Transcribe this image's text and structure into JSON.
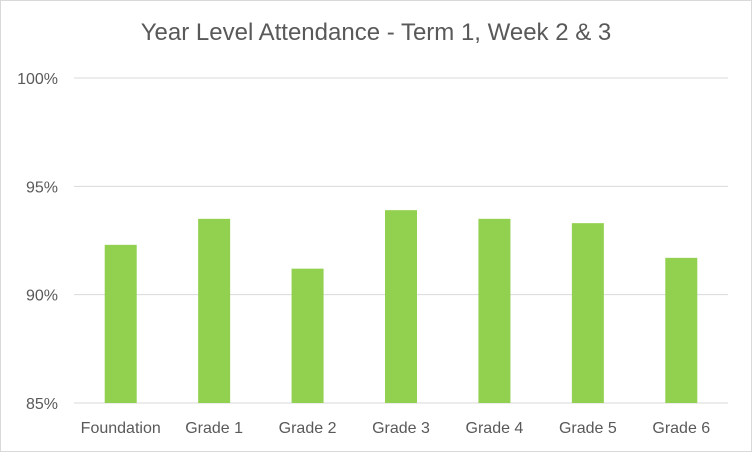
{
  "chart_data": {
    "type": "bar",
    "title": "Year Level Attendance - Term 1, Week 2 & 3",
    "categories": [
      "Foundation",
      "Grade 1",
      "Grade 2",
      "Grade 3",
      "Grade 4",
      "Grade 5",
      "Grade 6"
    ],
    "values": [
      92.3,
      93.5,
      91.2,
      93.9,
      93.5,
      93.3,
      91.7
    ],
    "ylim": [
      85,
      100
    ],
    "yticks": [
      85,
      90,
      95,
      100
    ],
    "ytick_labels": [
      "85%",
      "90%",
      "95%",
      "100%"
    ],
    "xlabel": "",
    "ylabel": "",
    "grid": true,
    "bar_color": "#92d050",
    "grid_color": "#d9d9d9"
  }
}
